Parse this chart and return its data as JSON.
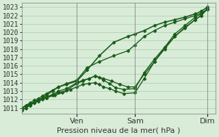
{
  "bg_color": "#d8ecd8",
  "grid_color": "#aaccaa",
  "line_color": "#1a5c1a",
  "marker_color": "#1a5c1a",
  "ylabel_ticks": [
    1011,
    1012,
    1013,
    1014,
    1015,
    1016,
    1017,
    1018,
    1019,
    1020,
    1021,
    1022,
    1023
  ],
  "ylim": [
    1010.3,
    1023.5
  ],
  "xlabel": "Pression niveau de la mer( hPa )",
  "day_labels": [
    "Ven",
    "Sam",
    "Dim"
  ],
  "day_positions": [
    0.27,
    0.555,
    0.91
  ],
  "title_fontsize": 9,
  "axis_fontsize": 8,
  "tick_fontsize": 7,
  "lines": [
    {
      "x": [
        0.0,
        0.02,
        0.04,
        0.06,
        0.08,
        0.1,
        0.12,
        0.15,
        0.18,
        0.22,
        0.27,
        0.32,
        0.38,
        0.45,
        0.52,
        0.555,
        0.6,
        0.65,
        0.7,
        0.75,
        0.8,
        0.85,
        0.88,
        0.91
      ],
      "y": [
        1011.0,
        1011.2,
        1011.4,
        1011.6,
        1011.9,
        1012.2,
        1012.5,
        1013.0,
        1013.5,
        1013.8,
        1014.2,
        1015.5,
        1017.2,
        1018.8,
        1019.5,
        1019.8,
        1020.2,
        1020.8,
        1021.2,
        1021.5,
        1021.8,
        1022.2,
        1022.5,
        1023.0
      ],
      "marker": "D",
      "markersize": 2.5,
      "lw": 1.2
    },
    {
      "x": [
        0.0,
        0.02,
        0.04,
        0.06,
        0.08,
        0.1,
        0.12,
        0.15,
        0.18,
        0.22,
        0.27,
        0.32,
        0.38,
        0.45,
        0.52,
        0.555,
        0.6,
        0.65,
        0.7,
        0.75,
        0.8,
        0.85,
        0.88,
        0.91
      ],
      "y": [
        1011.0,
        1011.3,
        1011.6,
        1011.9,
        1012.1,
        1012.4,
        1012.7,
        1013.1,
        1013.5,
        1013.9,
        1014.3,
        1015.8,
        1016.5,
        1017.2,
        1017.8,
        1018.5,
        1019.5,
        1020.2,
        1020.8,
        1021.2,
        1021.6,
        1022.0,
        1022.3,
        1022.7
      ],
      "marker": "D",
      "markersize": 2.5,
      "lw": 1.0
    },
    {
      "x": [
        0.0,
        0.02,
        0.04,
        0.06,
        0.08,
        0.1,
        0.12,
        0.15,
        0.18,
        0.22,
        0.27,
        0.3,
        0.33,
        0.36,
        0.4,
        0.44,
        0.48,
        0.52,
        0.555,
        0.6,
        0.65,
        0.7,
        0.75,
        0.8,
        0.85,
        0.88,
        0.91
      ],
      "y": [
        1010.7,
        1011.0,
        1011.3,
        1011.6,
        1011.9,
        1012.1,
        1012.3,
        1012.6,
        1013.0,
        1013.3,
        1014.0,
        1014.3,
        1014.5,
        1014.8,
        1014.5,
        1014.2,
        1013.8,
        1013.5,
        1013.5,
        1015.0,
        1016.5,
        1018.0,
        1019.5,
        1020.5,
        1021.5,
        1022.0,
        1022.8
      ],
      "marker": "D",
      "markersize": 2.5,
      "lw": 1.0
    },
    {
      "x": [
        0.0,
        0.02,
        0.04,
        0.06,
        0.08,
        0.1,
        0.12,
        0.15,
        0.18,
        0.22,
        0.27,
        0.3,
        0.33,
        0.36,
        0.38,
        0.4,
        0.43,
        0.46,
        0.5,
        0.555,
        0.6,
        0.65,
        0.7,
        0.75,
        0.8,
        0.85,
        0.88,
        0.91
      ],
      "y": [
        1010.7,
        1011.0,
        1011.3,
        1011.6,
        1011.8,
        1012.0,
        1012.2,
        1012.5,
        1012.8,
        1013.1,
        1013.9,
        1014.2,
        1014.5,
        1014.8,
        1014.6,
        1014.3,
        1013.9,
        1013.4,
        1013.2,
        1013.3,
        1015.2,
        1016.8,
        1018.2,
        1019.5,
        1020.6,
        1021.5,
        1022.0,
        1022.8
      ],
      "marker": "D",
      "markersize": 2.5,
      "lw": 1.0
    },
    {
      "x": [
        0.0,
        0.04,
        0.08,
        0.12,
        0.16,
        0.2,
        0.24,
        0.27,
        0.3,
        0.33,
        0.36,
        0.38,
        0.4,
        0.43,
        0.46,
        0.5,
        0.555,
        0.6,
        0.65,
        0.7,
        0.75,
        0.8,
        0.85,
        0.88,
        0.91
      ],
      "y": [
        1011.0,
        1011.5,
        1011.9,
        1012.2,
        1012.5,
        1012.8,
        1013.2,
        1013.5,
        1013.8,
        1013.9,
        1014.0,
        1013.8,
        1013.5,
        1013.3,
        1013.0,
        1012.7,
        1012.8,
        1014.5,
        1016.5,
        1018.2,
        1019.8,
        1020.8,
        1021.8,
        1022.2,
        1022.8
      ],
      "marker": "D",
      "markersize": 2.5,
      "lw": 1.0
    }
  ]
}
